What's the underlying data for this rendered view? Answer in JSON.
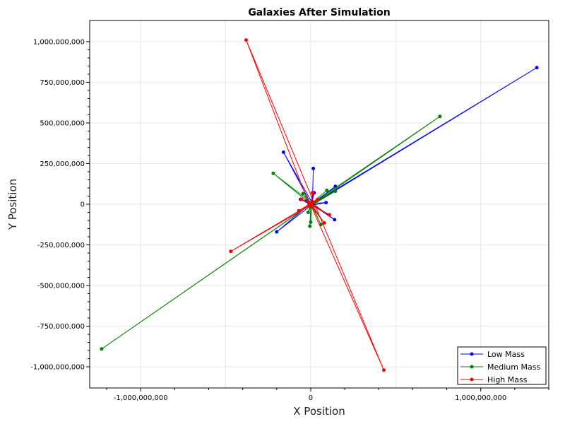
{
  "chart_data": {
    "type": "line",
    "title": "Galaxies After Simulation",
    "xlabel": "X Position",
    "ylabel": "Y Position",
    "xlim": [
      -1300000000,
      1400000000
    ],
    "ylim": [
      -1130000000,
      1130000000
    ],
    "x_ticks": [
      -1000000000,
      0,
      1000000000
    ],
    "x_tick_labels": [
      "-1,000,000,000",
      "0",
      "1,000,000,000"
    ],
    "y_ticks": [
      1000000000,
      750000000,
      500000000,
      250000000,
      0,
      -250000000,
      -500000000,
      -750000000,
      -1000000000
    ],
    "y_tick_labels": [
      "1,000,000,000",
      "750,000,000",
      "500,000,000",
      "250,000,000",
      "0",
      "-250,000,000",
      "-500,000,000",
      "-750,000,000",
      "-1,000,000,000"
    ],
    "grid": true,
    "legend_position": "bottom-right",
    "series": [
      {
        "name": "Low Mass",
        "color": "#0000ff",
        "points": [
          [
            20000000,
            10000000
          ],
          [
            1330000000,
            840000000
          ],
          [
            5000000,
            -5000000
          ],
          [
            -160000000,
            320000000
          ],
          [
            10000000,
            5000000
          ],
          [
            15000000,
            220000000
          ],
          [
            10000000,
            0
          ],
          [
            -60000000,
            30000000
          ],
          [
            5000000,
            -5000000
          ],
          [
            -200000000,
            -170000000
          ],
          [
            0,
            5000000
          ],
          [
            90000000,
            10000000
          ],
          [
            10000000,
            -5000000
          ],
          [
            145000000,
            110000000
          ],
          [
            10000000,
            5000000
          ],
          [
            140000000,
            -95000000
          ],
          [
            5000000,
            0
          ],
          [
            20000000,
            70000000
          ],
          [
            0,
            0
          ],
          [
            -25000000,
            20000000
          ],
          [
            5000000,
            -10000000
          ]
        ]
      },
      {
        "name": "Medium Mass",
        "color": "#008000",
        "points": [
          [
            0,
            -10000000
          ],
          [
            760000000,
            540000000
          ],
          [
            -5000000,
            -5000000
          ],
          [
            -1230000000,
            -890000000
          ],
          [
            0,
            0
          ],
          [
            -220000000,
            190000000
          ],
          [
            10000000,
            5000000
          ],
          [
            145000000,
            80000000
          ],
          [
            0,
            -10000000
          ],
          [
            -5000000,
            -135000000
          ],
          [
            5000000,
            0
          ],
          [
            60000000,
            -125000000
          ],
          [
            0,
            5000000
          ],
          [
            -45000000,
            65000000
          ],
          [
            5000000,
            -5000000
          ],
          [
            -15000000,
            -50000000
          ],
          [
            0,
            0
          ],
          [
            95000000,
            85000000
          ],
          [
            5000000,
            5000000
          ],
          [
            0,
            -110000000
          ]
        ]
      },
      {
        "name": "High Mass",
        "color": "#ff0000",
        "points": [
          [
            -10000000,
            0
          ],
          [
            -380000000,
            1010000000
          ],
          [
            430000000,
            -1020000000
          ],
          [
            0,
            -5000000
          ],
          [
            -470000000,
            -290000000
          ],
          [
            5000000,
            5000000
          ],
          [
            10000000,
            70000000
          ],
          [
            0,
            -5000000
          ],
          [
            80000000,
            -115000000
          ],
          [
            0,
            5000000
          ],
          [
            -70000000,
            -40000000
          ],
          [
            5000000,
            0
          ],
          [
            110000000,
            -65000000
          ],
          [
            0,
            -5000000
          ],
          [
            -55000000,
            30000000
          ],
          [
            5000000,
            10000000
          ],
          [
            40000000,
            30000000
          ],
          [
            0,
            0
          ]
        ]
      }
    ]
  }
}
